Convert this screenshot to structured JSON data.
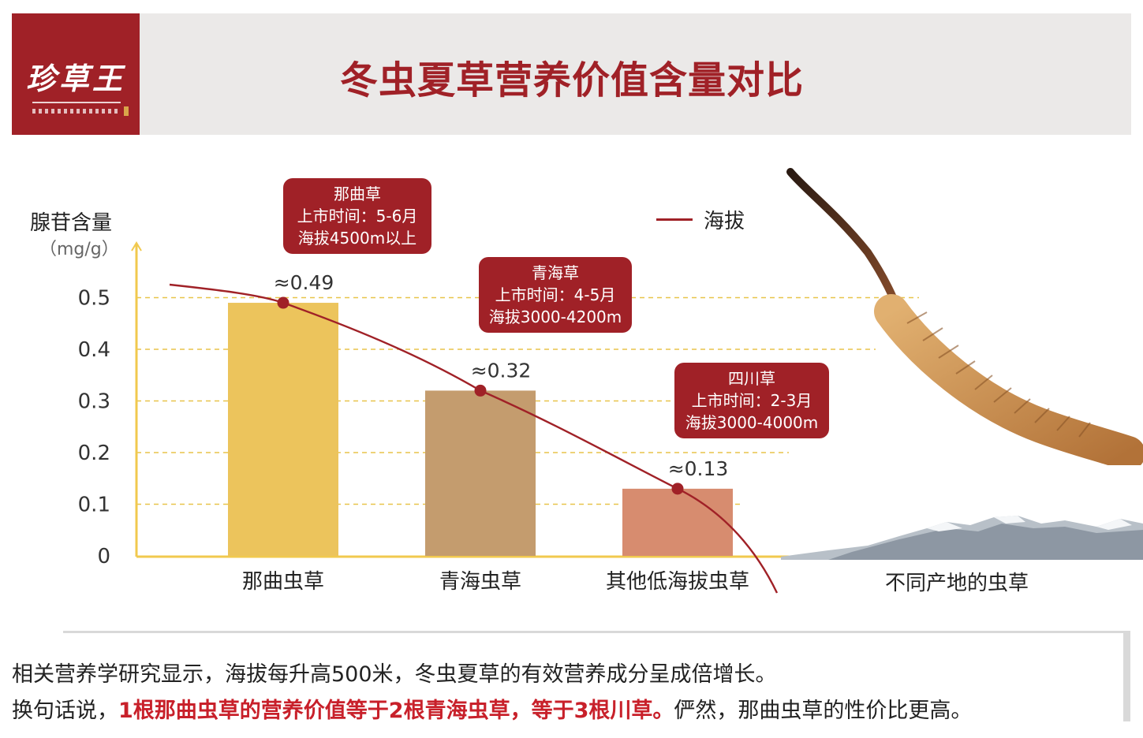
{
  "header": {
    "logo_text": "珍草王",
    "title": "冬虫夏草营养价值含量对比"
  },
  "colors": {
    "brand_red": "#a02127",
    "highlight_red": "#c8202a",
    "gridline": "#e8c44a",
    "axis": "#f1c94e"
  },
  "chart_data": {
    "type": "bar",
    "ylabel": "腺苷含量",
    "yunit": "（mg/g）",
    "yticks": [
      "0",
      "0.1",
      "0.2",
      "0.3",
      "0.4",
      "0.5"
    ],
    "ylim": [
      0,
      0.5
    ],
    "grid": "dashed horizontal",
    "categories": [
      "那曲虫草",
      "青海虫草",
      "其他低海拔虫草"
    ],
    "values": [
      0.49,
      0.32,
      0.13
    ],
    "value_labels": [
      "≈0.49",
      "≈0.32",
      "≈0.13"
    ],
    "bar_colors": [
      "#ecc45c",
      "#c49c6e",
      "#d78c6f"
    ],
    "extra_category_label": "不同产地的虫草",
    "line_series": {
      "name": "海拔",
      "legend_position": "top"
    },
    "annotations": [
      {
        "title": "那曲草",
        "lines": [
          "上市时间：5-6月",
          "海拔4500m以上"
        ]
      },
      {
        "title": "青海草",
        "lines": [
          "上市时间：4-5月",
          "海拔3000-4200m"
        ]
      },
      {
        "title": "四川草",
        "lines": [
          "上市时间：2-3月",
          "海拔3000-4000m"
        ]
      }
    ]
  },
  "note": {
    "line1": "相关营养学研究显示，海拔每升高500米，冬虫夏草的有效营养成分呈成倍增长。",
    "line2_prefix": "换句话说，",
    "line2_highlight": "1根那曲虫草的营养价值等于2根青海虫草，等于3根川草。",
    "line2_suffix": "俨然，那曲虫草的性价比更高。"
  }
}
